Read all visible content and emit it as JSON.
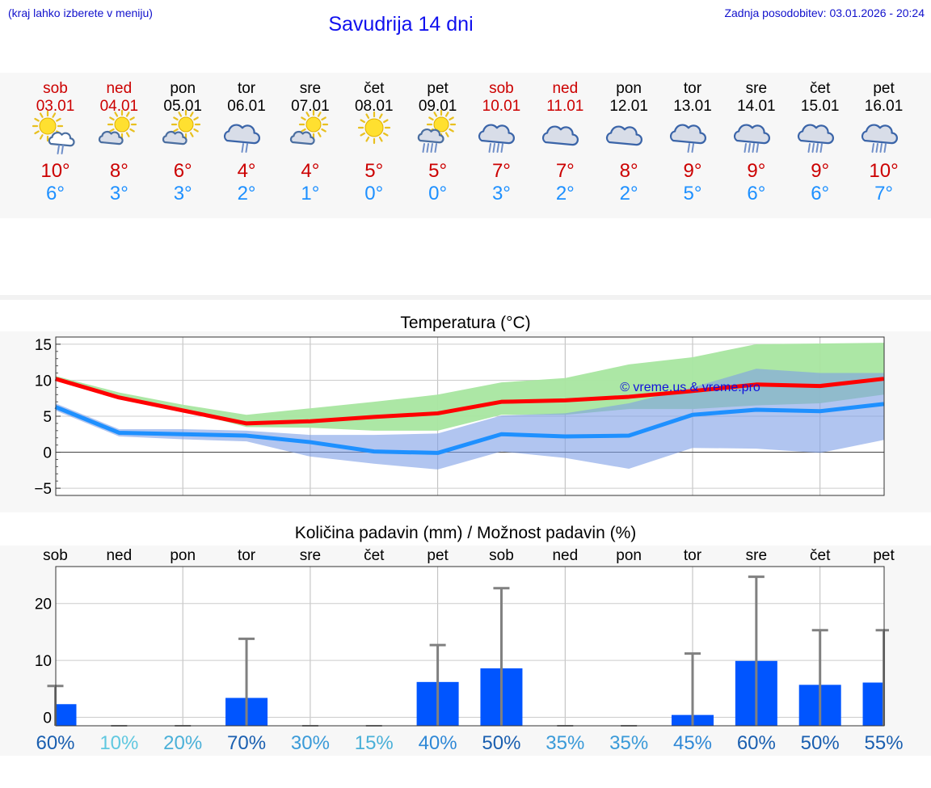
{
  "header": {
    "hint": "(kraj lahko izberete v meniju)",
    "title": "Savudrija 14 dni",
    "updated": "Zadnja posodobitev: 03.01.2026 - 20:24"
  },
  "days": [
    {
      "name": "sob",
      "date": "03.01",
      "max": "10°",
      "min": "6°",
      "icon": "sun-cloud-rain-icon",
      "weekend": true
    },
    {
      "name": "ned",
      "date": "04.01",
      "max": "8°",
      "min": "3°",
      "icon": "sun-cloud-icon",
      "weekend": true
    },
    {
      "name": "pon",
      "date": "05.01",
      "max": "6°",
      "min": "3°",
      "icon": "sun-cloud-icon",
      "weekend": false
    },
    {
      "name": "tor",
      "date": "06.01",
      "max": "4°",
      "min": "2°",
      "icon": "cloud-rain-icon",
      "weekend": false
    },
    {
      "name": "sre",
      "date": "07.01",
      "max": "4°",
      "min": "1°",
      "icon": "sun-cloud-icon",
      "weekend": false
    },
    {
      "name": "čet",
      "date": "08.01",
      "max": "5°",
      "min": "0°",
      "icon": "sun-icon",
      "weekend": false
    },
    {
      "name": "pet",
      "date": "09.01",
      "max": "5°",
      "min": "0°",
      "icon": "sun-cloud-heavy-rain-icon",
      "weekend": false
    },
    {
      "name": "sob",
      "date": "10.01",
      "max": "7°",
      "min": "3°",
      "icon": "cloud-heavy-rain-icon",
      "weekend": true
    },
    {
      "name": "ned",
      "date": "11.01",
      "max": "7°",
      "min": "2°",
      "icon": "cloud-icon",
      "weekend": true
    },
    {
      "name": "pon",
      "date": "12.01",
      "max": "8°",
      "min": "2°",
      "icon": "cloud-icon",
      "weekend": false
    },
    {
      "name": "tor",
      "date": "13.01",
      "max": "9°",
      "min": "5°",
      "icon": "cloud-rain-icon",
      "weekend": false
    },
    {
      "name": "sre",
      "date": "14.01",
      "max": "9°",
      "min": "6°",
      "icon": "cloud-heavy-rain-icon",
      "weekend": false
    },
    {
      "name": "čet",
      "date": "15.01",
      "max": "9°",
      "min": "6°",
      "icon": "cloud-heavy-rain-icon",
      "weekend": false
    },
    {
      "name": "pet",
      "date": "16.01",
      "max": "10°",
      "min": "7°",
      "icon": "cloud-heavy-rain-icon",
      "weekend": false
    }
  ],
  "colors": {
    "weekend": "#cc0000",
    "weekday": "#000000",
    "max_line": "#ff0000",
    "min_line": "#1e90ff",
    "max_band": "#a8e6a0",
    "min_band": "#a8c0f0",
    "overlap_band": "#7cbfa0",
    "bar": "#0055ff",
    "whisker": "#808080"
  },
  "chart_data": [
    {
      "type": "line",
      "title": "Temperatura (°C)",
      "watermark": "© vreme.us & vreme.pro",
      "x": [
        0,
        1,
        2,
        3,
        4,
        5,
        6,
        7,
        8,
        9,
        10,
        11,
        12,
        13
      ],
      "ylim": [
        -6,
        16
      ],
      "yticks": [
        15,
        10,
        5,
        0,
        -5
      ],
      "ytick_labels": [
        "15",
        "10",
        "5",
        "0",
        "−5"
      ],
      "series": [
        {
          "name": "max",
          "values": [
            10.2,
            7.6,
            5.8,
            4.0,
            4.3,
            4.9,
            5.4,
            7.0,
            7.2,
            7.7,
            8.5,
            9.4,
            9.2,
            10.2
          ],
          "band_low": [
            10.2,
            7.6,
            5.8,
            3.5,
            3.4,
            3.0,
            3.0,
            5.2,
            5.2,
            6.0,
            6.0,
            6.5,
            6.8,
            8.0
          ],
          "band_high": [
            10.6,
            8.3,
            6.6,
            5.2,
            6.1,
            7.0,
            8.0,
            9.7,
            10.3,
            12.2,
            13.2,
            15.0,
            15.1,
            15.2
          ]
        },
        {
          "name": "min",
          "values": [
            6.3,
            2.7,
            2.5,
            2.3,
            1.4,
            0.1,
            -0.1,
            2.5,
            2.2,
            2.3,
            5.2,
            5.9,
            5.7,
            6.7
          ],
          "band_low": [
            5.8,
            2.2,
            1.8,
            1.5,
            -0.6,
            -1.6,
            -2.4,
            0.1,
            -0.8,
            -2.3,
            0.6,
            0.5,
            -0.1,
            1.7
          ],
          "band_high": [
            6.8,
            3.2,
            3.2,
            3.0,
            2.4,
            2.4,
            2.6,
            5.1,
            5.4,
            6.8,
            9.0,
            11.6,
            11.0,
            11.0
          ]
        }
      ]
    },
    {
      "type": "bar",
      "title": "Količina padavin (mm) / Možnost padavin (%)",
      "categories": [
        "sob",
        "ned",
        "pon",
        "tor",
        "sre",
        "čet",
        "pet",
        "sob",
        "ned",
        "pon",
        "tor",
        "sre",
        "čet",
        "pet"
      ],
      "values": [
        2.3,
        0,
        0,
        3.4,
        0,
        0,
        6.2,
        8.6,
        0,
        0,
        0.4,
        9.9,
        5.7,
        6.1
      ],
      "whisker_high": [
        5.5,
        0,
        0,
        13.8,
        0,
        0,
        12.7,
        22.7,
        0,
        0,
        11.2,
        24.7,
        15.3,
        15.3
      ],
      "ylim": [
        -1.5,
        26.5
      ],
      "yticks": [
        20,
        10,
        0
      ],
      "ytick_labels": [
        "20",
        "10",
        "0"
      ],
      "probability": [
        "60%",
        "10%",
        "20%",
        "70%",
        "30%",
        "15%",
        "40%",
        "50%",
        "35%",
        "35%",
        "45%",
        "60%",
        "50%",
        "55%"
      ],
      "probability_values": [
        60,
        10,
        20,
        70,
        30,
        15,
        40,
        50,
        35,
        35,
        45,
        60,
        50,
        55
      ]
    }
  ]
}
